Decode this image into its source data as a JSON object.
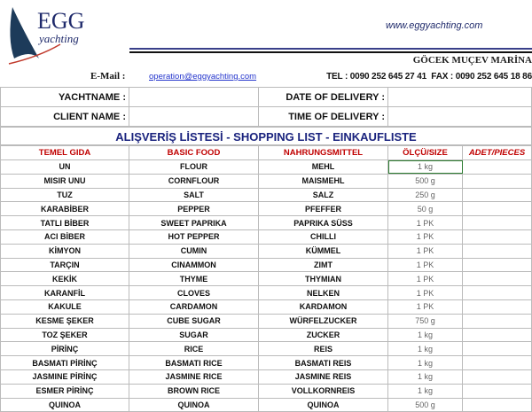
{
  "header": {
    "logo_text": "EGG yachting",
    "website": "www.eggyachting.com",
    "marina": "GÖCEK MUÇEV MARİNA",
    "email_label": "E-Mail :",
    "email": "operation@eggyachting.com",
    "tel": "TEL : 0090 252 645 27 41  FAX : 0090 252 645 18 86"
  },
  "info": {
    "yachtname_label": "YACHTNAME :",
    "yachtname": "",
    "client_label": "CLIENT NAME :",
    "client": "",
    "date_label": "DATE OF DELIVERY :",
    "date": "",
    "time_label": "TIME OF DELIVERY :",
    "time": ""
  },
  "list": {
    "title": "ALIŞVERİŞ LİSTESİ - SHOPPING LIST - EINKAUFLISTE",
    "columns": [
      "TEMEL GIDA",
      "BASIC FOOD",
      "NAHRUNGSMITTEL",
      "ÖLÇÜ/SIZE",
      "ADET/PIECES"
    ],
    "rows": [
      [
        "UN",
        "FLOUR",
        "MEHL",
        "1 kg",
        ""
      ],
      [
        "MISIR UNU",
        "CORNFLOUR",
        "MAISMEHL",
        "500 g",
        ""
      ],
      [
        "TUZ",
        "SALT",
        "SALZ",
        "250 g",
        ""
      ],
      [
        "KARABİBER",
        "PEPPER",
        "PFEFFER",
        "50 g",
        ""
      ],
      [
        "TATLI BİBER",
        "SWEET PAPRIKA",
        "PAPRIKA SÜSS",
        "1 PK",
        ""
      ],
      [
        "ACI BİBER",
        "HOT PEPPER",
        "CHILLI",
        "1 PK",
        ""
      ],
      [
        "KİMYON",
        "CUMIN",
        "KÜMMEL",
        "1 PK",
        ""
      ],
      [
        "TARÇIN",
        "CINAMMON",
        "ZIMT",
        "1 PK",
        ""
      ],
      [
        "KEKİK",
        "THYME",
        "THYMIAN",
        "1 PK",
        ""
      ],
      [
        "KARANFİL",
        "CLOVES",
        "NELKEN",
        "1 PK",
        ""
      ],
      [
        "KAKULE",
        "CARDAMON",
        "KARDAMON",
        "1 PK",
        ""
      ],
      [
        "KESME ŞEKER",
        "CUBE SUGAR",
        "WÜRFELZUCKER",
        "750 g",
        ""
      ],
      [
        "TOZ ŞEKER",
        "SUGAR",
        "ZUCKER",
        "1 kg",
        ""
      ],
      [
        "PİRİNÇ",
        "RICE",
        "REIS",
        "1 kg",
        ""
      ],
      [
        "BASMATI PİRİNÇ",
        "BASMATI RICE",
        "BASMATI REIS",
        "1 kg",
        ""
      ],
      [
        "JASMINE PİRİNÇ",
        "JASMINE RICE",
        "JASMINE REIS",
        "1 kg",
        ""
      ],
      [
        "ESMER PİRİNÇ",
        "BROWN RICE",
        "VOLLKORNREIS",
        "1 kg",
        ""
      ],
      [
        "QUINOA",
        "QUINOA",
        "QUINOA",
        "500 g",
        ""
      ]
    ]
  },
  "colors": {
    "header_red": "#c00000",
    "title_blue": "#1a237e",
    "selection": "#2e7d32"
  }
}
